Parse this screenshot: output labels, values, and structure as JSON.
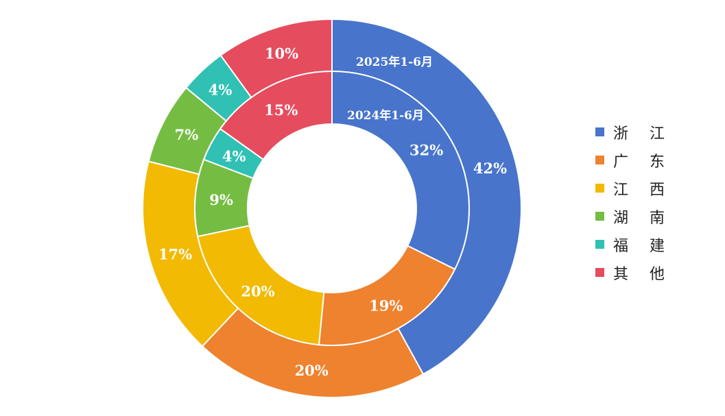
{
  "chart_data": {
    "type": "pie",
    "variant": "nested-donut",
    "categories": [
      "浙江",
      "广东",
      "江西",
      "湖南",
      "福建",
      "其他"
    ],
    "legend_labels": [
      "浙 江",
      "广 东",
      "江 西",
      "湖 南",
      "福 建",
      "其 他"
    ],
    "colors": [
      "#4874CB",
      "#EE822F",
      "#F2BA02",
      "#75BD42",
      "#30C0B4",
      "#E54C5E"
    ],
    "series": [
      {
        "name": "2025年1-6月",
        "ring": "outer",
        "values": [
          42,
          20,
          17,
          7,
          4,
          10
        ]
      },
      {
        "name": "2024年1-6月",
        "ring": "inner",
        "values": [
          32,
          19,
          20,
          9,
          4,
          15
        ]
      }
    ],
    "data_label_format": "{value}%",
    "legend_position": "right"
  }
}
